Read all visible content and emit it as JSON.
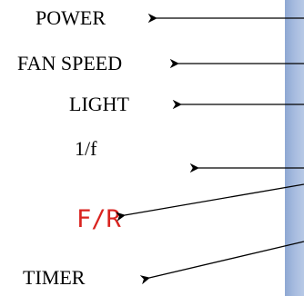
{
  "labels": {
    "power": "POWER",
    "fan_speed": "FAN SPEED",
    "light": "LIGHT",
    "one_over_f": "1/f",
    "forward_reverse": "F/R",
    "timer": "TIMER"
  },
  "colors": {
    "label_text": "#000000",
    "fr_text": "#d9231f",
    "arrow": "#000000",
    "remote_body": "#a9bde0"
  }
}
